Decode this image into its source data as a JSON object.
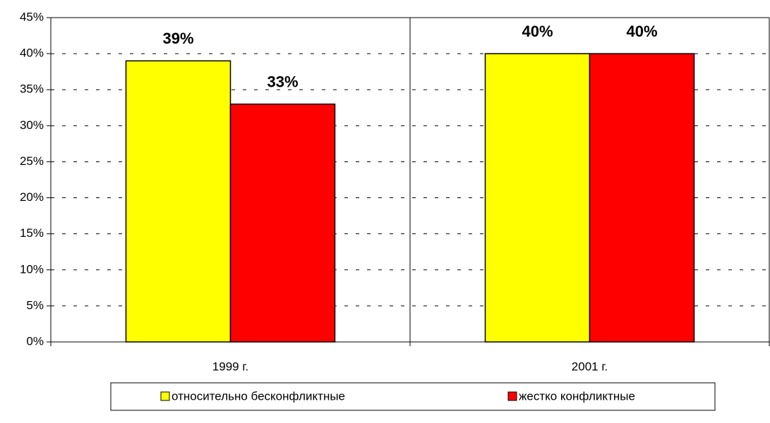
{
  "chart_data": {
    "type": "bar",
    "categories": [
      "1999 г.",
      "2001 г."
    ],
    "series": [
      {
        "name": "относительно бесконфликтные",
        "color": "#ffff00",
        "values": [
          39,
          40
        ],
        "value_labels": [
          "39%",
          "40%"
        ]
      },
      {
        "name": "жестко конфликтные",
        "color": "#ff0000",
        "values": [
          33,
          40
        ],
        "value_labels": [
          "33%",
          "40%"
        ]
      }
    ],
    "ylim": [
      0,
      45
    ],
    "yticks": [
      {
        "value": 0,
        "label": "0%"
      },
      {
        "value": 5,
        "label": "5%"
      },
      {
        "value": 10,
        "label": "10%"
      },
      {
        "value": 15,
        "label": "15%"
      },
      {
        "value": 20,
        "label": "20%"
      },
      {
        "value": 25,
        "label": "25%"
      },
      {
        "value": 30,
        "label": "30%"
      },
      {
        "value": 35,
        "label": "35%"
      },
      {
        "value": 40,
        "label": "40%"
      },
      {
        "value": 45,
        "label": "45%"
      }
    ],
    "grid": true,
    "legend": "bottom"
  }
}
